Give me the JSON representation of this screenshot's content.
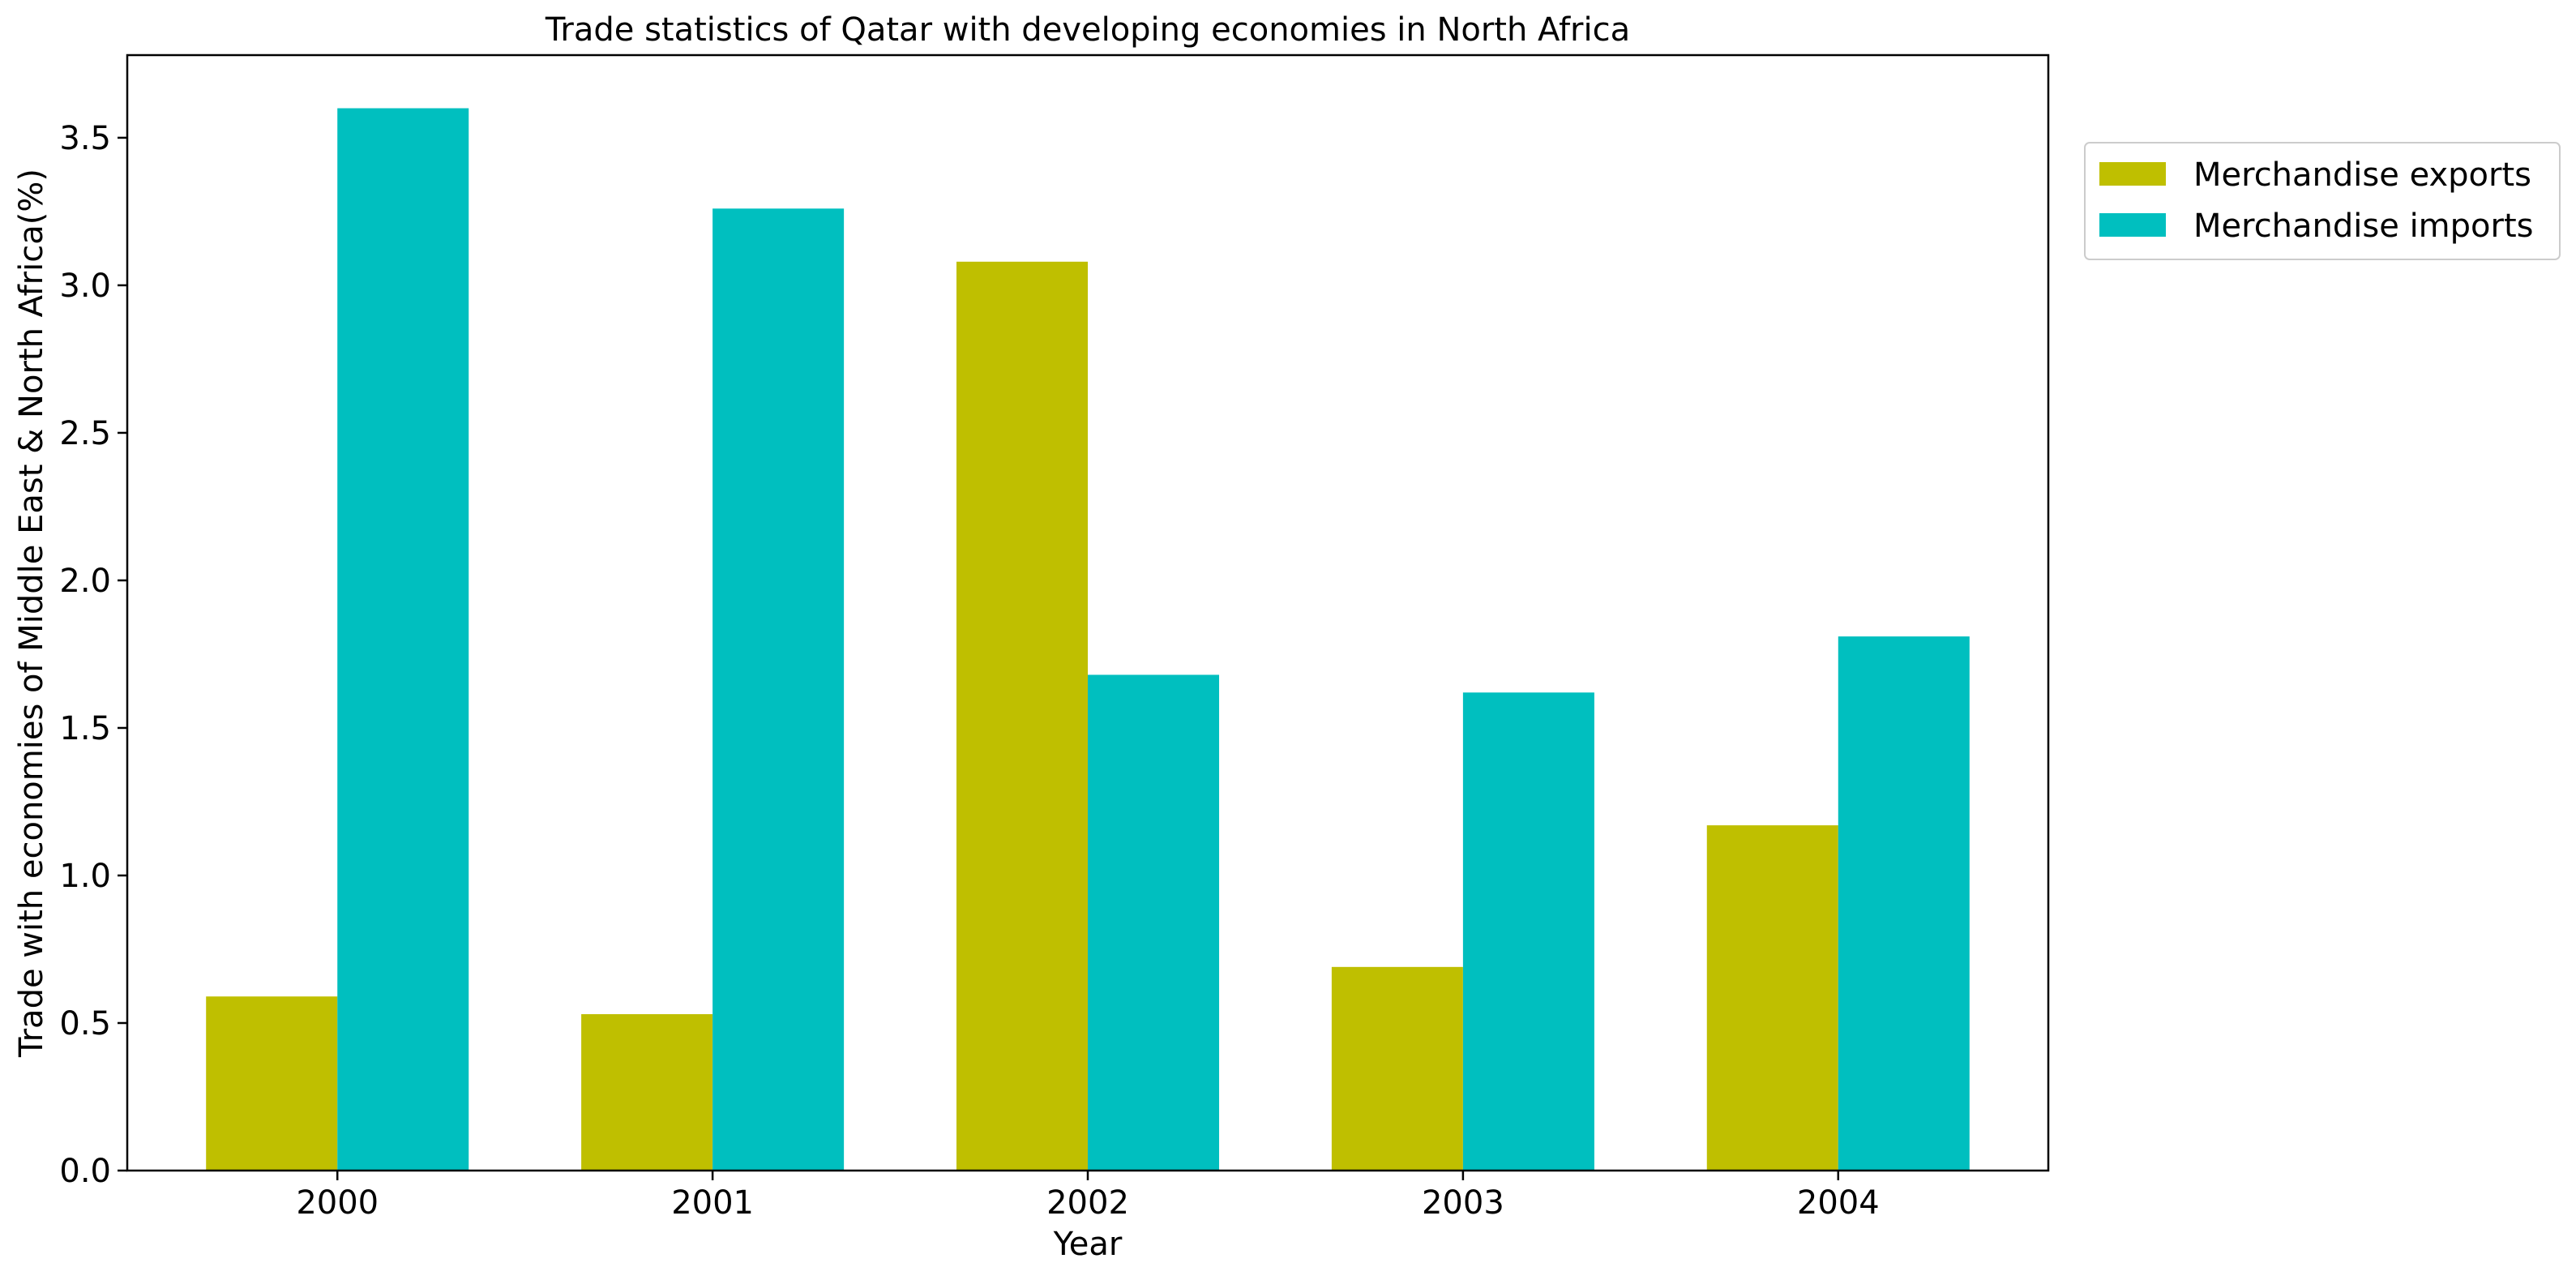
{
  "chart_data": {
    "type": "bar",
    "title": "Trade statistics of Qatar with developing economies in North Africa",
    "xlabel": "Year",
    "ylabel": "Trade with economies of Middle East & North Africa(%)",
    "categories": [
      "2000",
      "2001",
      "2002",
      "2003",
      "2004"
    ],
    "series": [
      {
        "name": "Merchandise exports",
        "color": "#bfbf00",
        "values": [
          0.59,
          0.53,
          3.08,
          0.69,
          1.17
        ]
      },
      {
        "name": "Merchandise imports",
        "color": "#00bfbf",
        "values": [
          3.6,
          3.26,
          1.68,
          1.62,
          1.81
        ]
      }
    ],
    "ylim": [
      0,
      3.78
    ],
    "yticks": [
      "0.0",
      "0.5",
      "1.0",
      "1.5",
      "2.0",
      "2.5",
      "3.0",
      "3.5"
    ],
    "grid": false,
    "legend_position": "outside-top-right"
  }
}
